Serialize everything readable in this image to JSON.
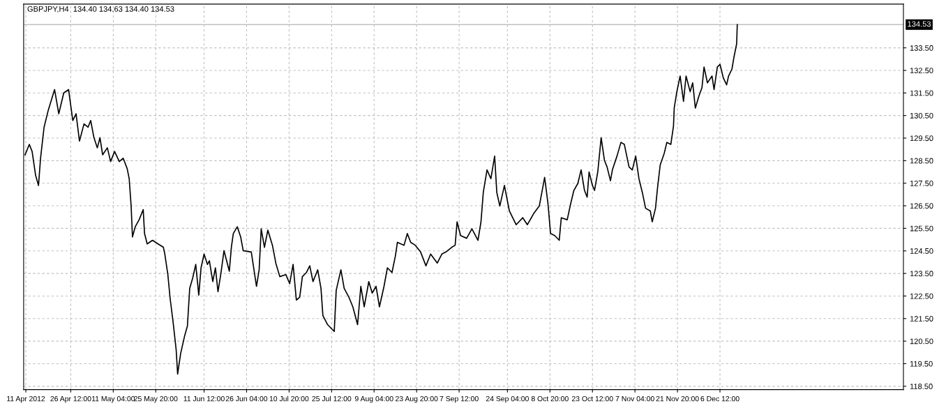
{
  "chart_data": {
    "type": "line",
    "title": "GBPJPY,H4  134.40 134.63 134.40 134.53",
    "x": [
      "2012-04-10T18:00",
      "2012-04-12T05:00",
      "2012-04-13T04:00",
      "2012-04-14T09:00",
      "2012-04-15T09:00",
      "2012-04-16T02:00",
      "2012-04-17T07:00",
      "2012-04-18T18:00",
      "2012-04-20T22:00",
      "2012-04-22T09:00",
      "2012-04-24T02:00",
      "2012-04-25T18:00",
      "2012-04-27T05:00",
      "2012-04-28T08:00",
      "2012-04-29T12:00",
      "2012-05-01T02:00",
      "2012-05-02T11:00",
      "2012-05-03T09:00",
      "2012-05-04T12:00",
      "2012-05-05T16:00",
      "2012-05-06T14:00",
      "2012-05-07T12:00",
      "2012-05-09T03:00",
      "2012-05-10T06:00",
      "2012-05-11T15:00",
      "2012-05-13T06:00",
      "2012-05-14T14:00",
      "2012-05-15T23:00",
      "2012-05-16T16:00",
      "2012-05-17T08:00",
      "2012-05-17T19:00",
      "2012-05-18T18:00",
      "2012-05-20T02:00",
      "2012-05-21T12:00",
      "2012-05-21T23:00",
      "2012-05-22T21:00",
      "2012-05-24T17:00",
      "2012-05-26T15:00",
      "2012-05-28T11:00",
      "2012-05-28T23:00",
      "2012-05-30T00:00",
      "2012-05-30T19:00",
      "2012-05-31T20:00",
      "2012-06-01T21:00",
      "2012-06-02T09:00",
      "2012-06-03T10:00",
      "2012-06-04T18:00",
      "2012-06-05T18:00",
      "2012-06-06T13:00",
      "2012-06-07T14:00",
      "2012-06-08T15:00",
      "2012-06-09T16:00",
      "2012-06-10T11:00",
      "2012-06-11T12:00",
      "2012-06-12T16:00",
      "2012-06-13T08:00",
      "2012-06-14T12:00",
      "2012-06-15T10:00",
      "2012-06-16T07:00",
      "2012-06-17T06:00",
      "2012-06-18T09:00",
      "2012-06-19T07:00",
      "2012-06-20T05:00",
      "2012-06-20T22:00",
      "2012-06-21T14:00",
      "2012-06-22T23:00",
      "2012-06-24T03:00",
      "2012-06-25T00:00",
      "2012-06-27T19:00",
      "2012-06-29T14:00",
      "2012-06-30T12:00",
      "2012-07-01T05:00",
      "2012-07-02T08:00",
      "2012-07-03T12:00",
      "2012-07-05T02:00",
      "2012-07-06T06:00",
      "2012-07-07T15:00",
      "2012-07-09T17:00",
      "2012-07-11T01:00",
      "2012-07-12T05:00",
      "2012-07-13T08:00",
      "2012-07-14T12:00",
      "2012-07-15T10:00",
      "2012-07-16T19:00",
      "2012-07-17T23:00",
      "2012-07-19T02:00",
      "2012-07-20T17:00",
      "2012-07-21T20:00",
      "2012-07-22T12:00",
      "2012-07-24T03:00",
      "2012-07-26T10:00",
      "2012-07-27T02:00",
      "2012-07-28T17:00",
      "2012-07-29T20:00",
      "2012-07-31T11:00",
      "2012-08-01T20:00",
      "2012-08-03T11:00",
      "2012-08-04T14:00",
      "2012-08-05T18:00",
      "2012-08-07T08:00",
      "2012-08-08T12:00",
      "2012-08-09T20:00",
      "2012-08-11T00:00",
      "2012-08-12T14:00",
      "2012-08-13T18:00",
      "2012-08-15T08:00",
      "2012-08-16T12:00",
      "2012-08-17T05:00",
      "2012-08-19T12:00",
      "2012-08-20T15:00",
      "2012-08-21T19:00",
      "2012-08-23T09:00",
      "2012-08-25T05:00",
      "2012-08-27T01:00",
      "2012-08-28T16:00",
      "2012-08-30T23:00",
      "2012-09-01T13:00",
      "2012-09-02T22:00",
      "2012-09-04T23:00",
      "2012-09-06T03:00",
      "2012-09-06T19:00",
      "2012-09-08T00:00",
      "2012-09-10T02:00",
      "2012-09-11T22:00",
      "2012-09-14T00:00",
      "2012-09-15T01:00",
      "2012-09-15T20:00",
      "2012-09-17T03:00",
      "2012-09-18T11:00",
      "2012-09-19T18:00",
      "2012-09-20T12:00",
      "2012-09-21T13:00",
      "2012-09-23T03:00",
      "2012-09-24T20:00",
      "2012-09-27T04:00",
      "2012-09-29T11:00",
      "2012-10-01T01:00",
      "2012-10-03T08:00",
      "2012-10-05T04:00",
      "2012-10-07T00:00",
      "2012-10-08T04:00",
      "2012-10-09T01:00",
      "2012-10-10T11:00",
      "2012-10-12T01:00",
      "2012-10-12T18:00",
      "2012-10-14T19:00",
      "2012-10-15T23:00",
      "2012-10-17T02:00",
      "2012-10-18T11:00",
      "2012-10-19T14:00",
      "2012-10-20T18:00",
      "2012-10-21T16:00",
      "2012-10-22T08:00",
      "2012-10-23T12:00",
      "2012-10-24T05:00",
      "2012-10-25T08:00",
      "2012-10-26T12:00",
      "2012-10-27T15:00",
      "2012-10-28T13:00",
      "2012-10-29T17:00",
      "2012-10-30T09:00",
      "2012-10-31T23:00",
      "2012-11-02T08:00",
      "2012-11-03T12:00",
      "2012-11-05T03:00",
      "2012-11-06T06:00",
      "2012-11-07T10:00",
      "2012-11-08T13:00",
      "2012-11-09T17:00",
      "2012-11-10T20:00",
      "2012-11-12T11:00",
      "2012-11-13T03:00",
      "2012-11-14T06:00",
      "2012-11-14T23:00",
      "2012-11-15T21:00",
      "2012-11-17T06:00",
      "2012-11-18T04:00",
      "2012-11-19T13:00",
      "2012-11-20T11:00",
      "2012-11-20T17:00",
      "2012-11-21T15:00",
      "2012-11-22T18:00",
      "2012-11-23T22:00",
      "2012-11-24T19:00",
      "2012-11-26T05:00",
      "2012-11-27T02:00",
      "2012-11-28T00:00",
      "2012-11-29T04:00",
      "2012-11-30T07:00",
      "2012-12-01T00:00",
      "2012-12-02T04:00",
      "2012-12-03T18:00",
      "2012-12-04T11:00",
      "2012-12-05T14:00",
      "2012-12-06T12:00",
      "2012-12-07T16:00",
      "2012-12-08T19:00",
      "2012-12-09T11:00",
      "2012-12-10T15:00",
      "2012-12-11T07:00",
      "2012-12-12T06:00",
      "2012-12-12T11:00"
    ],
    "series": [
      {
        "color": "#000000",
        "values": [
          128.76,
          129.22,
          128.91,
          127.85,
          127.4,
          128.61,
          129.98,
          130.74,
          131.65,
          130.58,
          131.5,
          131.65,
          130.28,
          130.58,
          129.37,
          130.13,
          129.98,
          130.28,
          129.52,
          129.07,
          129.52,
          128.76,
          129.07,
          128.46,
          128.91,
          128.46,
          128.61,
          128.15,
          127.7,
          126.49,
          125.12,
          125.57,
          125.88,
          126.33,
          125.27,
          124.81,
          124.97,
          124.81,
          124.66,
          124.36,
          123.45,
          122.39,
          121.32,
          120.11,
          119.04,
          119.95,
          120.71,
          121.17,
          122.84,
          123.3,
          123.9,
          122.54,
          123.75,
          124.36,
          123.9,
          124.06,
          123.14,
          123.75,
          122.69,
          123.45,
          124.51,
          124.06,
          123.6,
          124.66,
          125.27,
          125.57,
          125.12,
          124.51,
          124.45,
          122.93,
          123.66,
          125.48,
          124.66,
          125.42,
          124.75,
          123.96,
          123.36,
          123.45,
          123.05,
          123.9,
          122.32,
          122.45,
          123.36,
          123.54,
          123.84,
          123.14,
          123.66,
          122.84,
          121.63,
          121.23,
          120.93,
          122.75,
          123.66,
          122.84,
          122.45,
          122.02,
          121.23,
          122.93,
          122.02,
          123.14,
          122.63,
          122.93,
          122.02,
          122.93,
          123.75,
          123.54,
          124.27,
          124.88,
          124.75,
          125.27,
          124.88,
          124.75,
          124.45,
          123.84,
          124.36,
          123.96,
          124.36,
          124.45,
          124.66,
          124.75,
          125.79,
          125.18,
          125.06,
          125.48,
          124.97,
          125.79,
          127.09,
          128.09,
          127.7,
          128.7,
          127.09,
          126.49,
          127.4,
          126.27,
          125.66,
          125.97,
          125.66,
          126.18,
          126.49,
          127.76,
          126.58,
          125.27,
          125.18,
          124.97,
          125.97,
          125.88,
          126.58,
          127.18,
          127.49,
          128.09,
          127.18,
          126.88,
          128.0,
          127.4,
          127.18,
          128.0,
          129.52,
          128.52,
          128.22,
          127.61,
          128.09,
          128.7,
          129.31,
          129.22,
          128.22,
          128.09,
          128.7,
          127.7,
          127.09,
          126.39,
          126.27,
          125.79,
          126.39,
          127.3,
          128.31,
          128.82,
          129.31,
          129.22,
          130.04,
          130.83,
          131.56,
          132.25,
          131.13,
          132.25,
          131.56,
          131.95,
          130.83,
          131.34,
          131.74,
          132.65,
          131.95,
          132.25,
          131.65,
          132.65,
          132.77,
          132.16,
          131.86,
          132.25,
          132.56,
          133.07,
          133.68,
          134.53
        ]
      }
    ],
    "xlim": [
      "2012-04-10T06:00",
      "2013-02-07T19:00"
    ],
    "ylim": [
      118.35,
      135.44
    ],
    "xticks": [
      {
        "value": "2012-04-11T00:00",
        "label": "11 Apr 2012"
      },
      {
        "value": "2012-04-26T12:00",
        "label": "26 Apr 12:00"
      },
      {
        "value": "2012-05-11T04:00",
        "label": "11 May 04:00"
      },
      {
        "value": "2012-05-25T20:00",
        "label": "25 May 20:00"
      },
      {
        "value": "2012-06-11T12:00",
        "label": "11 Jun 12:00"
      },
      {
        "value": "2012-06-26T04:00",
        "label": "26 Jun 04:00"
      },
      {
        "value": "2012-07-10T20:00",
        "label": "10 Jul 20:00"
      },
      {
        "value": "2012-07-25T12:00",
        "label": "25 Jul 12:00"
      },
      {
        "value": "2012-08-09T04:00",
        "label": "9 Aug 04:00"
      },
      {
        "value": "2012-08-23T20:00",
        "label": "23 Aug 20:00"
      },
      {
        "value": "2012-09-07T12:00",
        "label": "7 Sep 12:00"
      },
      {
        "value": "2012-09-24T04:00",
        "label": "24 Sep 04:00"
      },
      {
        "value": "2012-10-08T20:00",
        "label": "8 Oct 20:00"
      },
      {
        "value": "2012-10-23T12:00",
        "label": "23 Oct 12:00"
      },
      {
        "value": "2012-11-07T04:00",
        "label": "7 Nov 04:00"
      },
      {
        "value": "2012-11-21T20:00",
        "label": "21 Nov 20:00"
      },
      {
        "value": "2012-12-06T12:00",
        "label": "6 Dec 12:00"
      }
    ],
    "yticks": [
      {
        "value": 118.5,
        "label": "118.50"
      },
      {
        "value": 119.5,
        "label": "119.50"
      },
      {
        "value": 120.5,
        "label": "120.50"
      },
      {
        "value": 121.5,
        "label": "121.50"
      },
      {
        "value": 122.5,
        "label": "122.50"
      },
      {
        "value": 123.5,
        "label": "123.50"
      },
      {
        "value": 124.5,
        "label": "124.50"
      },
      {
        "value": 125.5,
        "label": "125.50"
      },
      {
        "value": 126.5,
        "label": "126.50"
      },
      {
        "value": 127.5,
        "label": "127.50"
      },
      {
        "value": 128.5,
        "label": "128.50"
      },
      {
        "value": 129.5,
        "label": "129.50"
      },
      {
        "value": 130.5,
        "label": "130.50"
      },
      {
        "value": 131.5,
        "label": "131.50"
      },
      {
        "value": 132.5,
        "label": "132.50"
      },
      {
        "value": 133.5,
        "label": "133.50"
      }
    ],
    "ref_lines": [
      {
        "axis": "y",
        "value": 134.53,
        "label": "134.53",
        "color": "#c0c0c0"
      }
    ],
    "grid": true,
    "line_style": "solid",
    "marker": "none",
    "legend": false
  }
}
